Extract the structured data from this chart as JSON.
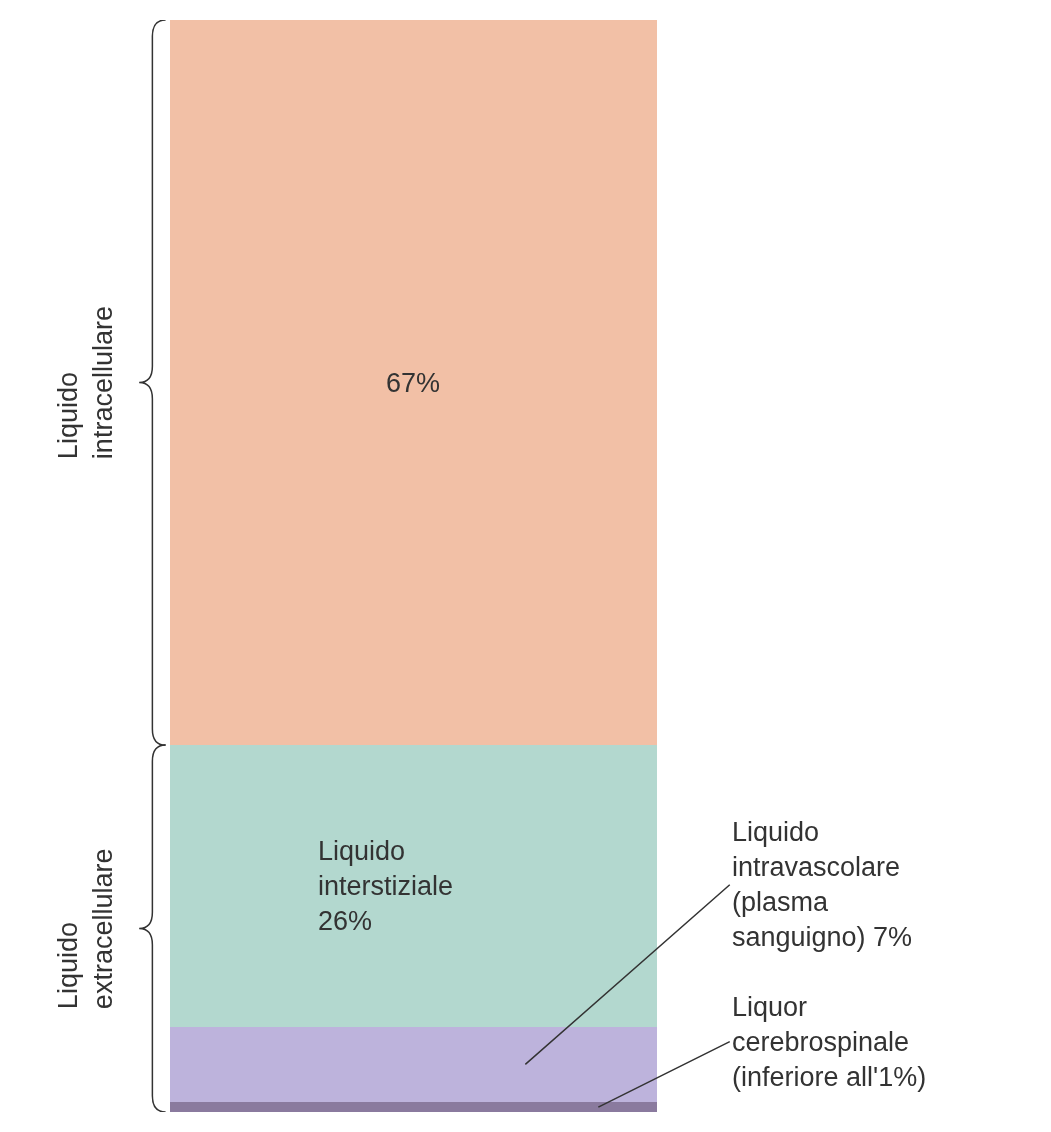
{
  "chart_data": {
    "type": "bar",
    "stacked": true,
    "categories": [
      null
    ],
    "series": [
      {
        "color": "#8a7a9e",
        "values": [
          0.9
        ],
        "value_labels": [
          "Liquor\ncerebrospinale\n(inferiore all'1%)"
        ]
      },
      {
        "color": "#bdb3dc",
        "values": [
          7
        ],
        "value_labels": [
          "Liquido\nintravascolare\n(plasma\nsanguigno) 7%"
        ]
      },
      {
        "color": "#b3d8cf",
        "values": [
          26
        ],
        "value_labels": [
          "Liquido\ninterstiziale\n26%"
        ]
      },
      {
        "color": "#f2c0a6",
        "values": [
          67
        ],
        "value_labels": [
          "67%"
        ]
      }
    ],
    "ylim": [
      0,
      100.9
    ],
    "tick_labels": false,
    "legend": false,
    "annotations": [
      "Liquido\nintracellulare",
      "Liquido\nextracellulare"
    ]
  }
}
